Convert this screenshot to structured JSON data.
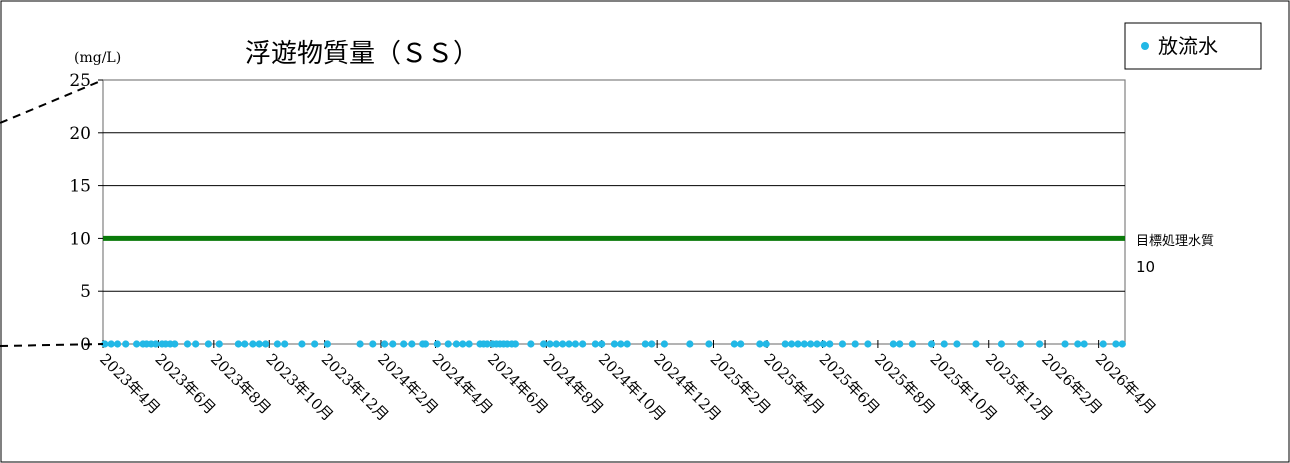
{
  "chart_data": {
    "type": "scatter",
    "title": "浮遊物質量（ＳＳ）",
    "unit_label": "(mg/L)",
    "ylim": [
      0,
      25
    ],
    "yticks": [
      0,
      5,
      10,
      15,
      20,
      25
    ],
    "x_range": [
      "2023-04-01",
      "2026-04-30"
    ],
    "xtick_dates": [
      "2023-04-01",
      "2023-06-01",
      "2023-08-01",
      "2023-10-01",
      "2023-12-01",
      "2024-02-01",
      "2024-04-01",
      "2024-06-01",
      "2024-08-01",
      "2024-10-01",
      "2024-12-01",
      "2025-02-01",
      "2025-04-01",
      "2025-06-01",
      "2025-08-01",
      "2025-10-01",
      "2025-12-01",
      "2026-02-01",
      "2026-04-01"
    ],
    "xtick_labels": [
      "2023年4月",
      "2023年6月",
      "2023年8月",
      "2023年10月",
      "2023年12月",
      "2024年2月",
      "2024年4月",
      "2024年6月",
      "2024年8月",
      "2024年10月",
      "2024年12月",
      "2025年2月",
      "2025年4月",
      "2025年6月",
      "2025年8月",
      "2025年10月",
      "2025年12月",
      "2026年2月",
      "2026年4月"
    ],
    "legend": {
      "position": "top-right",
      "marker_color": "#22b8e6"
    },
    "series": [
      {
        "name": "放流水",
        "color": "#22b8e6",
        "points": [
          {
            "x": "2023-04-03",
            "y": 0
          },
          {
            "x": "2023-04-10",
            "y": 0
          },
          {
            "x": "2023-04-17",
            "y": 0
          },
          {
            "x": "2023-04-26",
            "y": 0
          },
          {
            "x": "2023-05-08",
            "y": 0
          },
          {
            "x": "2023-05-15",
            "y": 0
          },
          {
            "x": "2023-05-19",
            "y": 0
          },
          {
            "x": "2023-05-24",
            "y": 0
          },
          {
            "x": "2023-05-29",
            "y": 0
          },
          {
            "x": "2023-06-05",
            "y": 0
          },
          {
            "x": "2023-06-09",
            "y": 0
          },
          {
            "x": "2023-06-14",
            "y": 0
          },
          {
            "x": "2023-06-19",
            "y": 0
          },
          {
            "x": "2023-07-03",
            "y": 0
          },
          {
            "x": "2023-07-12",
            "y": 0
          },
          {
            "x": "2023-07-26",
            "y": 0
          },
          {
            "x": "2023-08-07",
            "y": 0
          },
          {
            "x": "2023-08-28",
            "y": 0
          },
          {
            "x": "2023-09-04",
            "y": 0
          },
          {
            "x": "2023-09-13",
            "y": 0
          },
          {
            "x": "2023-09-20",
            "y": 0
          },
          {
            "x": "2023-09-27",
            "y": 0
          },
          {
            "x": "2023-10-10",
            "y": 0
          },
          {
            "x": "2023-10-18",
            "y": 0
          },
          {
            "x": "2023-11-06",
            "y": 0
          },
          {
            "x": "2023-11-20",
            "y": 0
          },
          {
            "x": "2023-12-04",
            "y": 0
          },
          {
            "x": "2024-01-09",
            "y": 0
          },
          {
            "x": "2024-01-23",
            "y": 0
          },
          {
            "x": "2024-02-05",
            "y": 0
          },
          {
            "x": "2024-02-14",
            "y": 0
          },
          {
            "x": "2024-02-26",
            "y": 0
          },
          {
            "x": "2024-03-06",
            "y": 0
          },
          {
            "x": "2024-03-18",
            "y": 0
          },
          {
            "x": "2024-03-21",
            "y": 0
          },
          {
            "x": "2024-04-03",
            "y": 0
          },
          {
            "x": "2024-04-15",
            "y": 0
          },
          {
            "x": "2024-04-24",
            "y": 0
          },
          {
            "x": "2024-05-01",
            "y": 0
          },
          {
            "x": "2024-05-08",
            "y": 0
          },
          {
            "x": "2024-05-20",
            "y": 0
          },
          {
            "x": "2024-05-24",
            "y": 0
          },
          {
            "x": "2024-05-28",
            "y": 0
          },
          {
            "x": "2024-06-03",
            "y": 0
          },
          {
            "x": "2024-06-07",
            "y": 0
          },
          {
            "x": "2024-06-11",
            "y": 0
          },
          {
            "x": "2024-06-15",
            "y": 0
          },
          {
            "x": "2024-06-19",
            "y": 0
          },
          {
            "x": "2024-06-24",
            "y": 0
          },
          {
            "x": "2024-06-28",
            "y": 0
          },
          {
            "x": "2024-07-15",
            "y": 0
          },
          {
            "x": "2024-07-29",
            "y": 0
          },
          {
            "x": "2024-08-05",
            "y": 0
          },
          {
            "x": "2024-08-12",
            "y": 0
          },
          {
            "x": "2024-08-19",
            "y": 0
          },
          {
            "x": "2024-08-26",
            "y": 0
          },
          {
            "x": "2024-09-02",
            "y": 0
          },
          {
            "x": "2024-09-10",
            "y": 0
          },
          {
            "x": "2024-09-24",
            "y": 0
          },
          {
            "x": "2024-10-01",
            "y": 0
          },
          {
            "x": "2024-10-15",
            "y": 0
          },
          {
            "x": "2024-10-22",
            "y": 0
          },
          {
            "x": "2024-10-29",
            "y": 0
          },
          {
            "x": "2024-11-18",
            "y": 0
          },
          {
            "x": "2024-11-25",
            "y": 0
          },
          {
            "x": "2024-12-09",
            "y": 0
          },
          {
            "x": "2025-01-06",
            "y": 0
          },
          {
            "x": "2025-01-27",
            "y": 0
          },
          {
            "x": "2025-02-24",
            "y": 0
          },
          {
            "x": "2025-03-03",
            "y": 0
          },
          {
            "x": "2025-03-24",
            "y": 0
          },
          {
            "x": "2025-03-31",
            "y": 0
          },
          {
            "x": "2025-04-21",
            "y": 0
          },
          {
            "x": "2025-04-28",
            "y": 0
          },
          {
            "x": "2025-05-05",
            "y": 0
          },
          {
            "x": "2025-05-12",
            "y": 0
          },
          {
            "x": "2025-05-19",
            "y": 0
          },
          {
            "x": "2025-05-26",
            "y": 0
          },
          {
            "x": "2025-06-02",
            "y": 0
          },
          {
            "x": "2025-06-09",
            "y": 0
          },
          {
            "x": "2025-06-23",
            "y": 0
          },
          {
            "x": "2025-07-07",
            "y": 0
          },
          {
            "x": "2025-07-21",
            "y": 0
          },
          {
            "x": "2025-08-18",
            "y": 0
          },
          {
            "x": "2025-08-25",
            "y": 0
          },
          {
            "x": "2025-09-08",
            "y": 0
          },
          {
            "x": "2025-09-29",
            "y": 0
          },
          {
            "x": "2025-10-13",
            "y": 0
          },
          {
            "x": "2025-10-27",
            "y": 0
          },
          {
            "x": "2025-11-17",
            "y": 0
          },
          {
            "x": "2025-12-15",
            "y": 0
          },
          {
            "x": "2026-01-05",
            "y": 0
          },
          {
            "x": "2026-01-26",
            "y": 0
          },
          {
            "x": "2026-02-23",
            "y": 0
          },
          {
            "x": "2026-03-09",
            "y": 0
          },
          {
            "x": "2026-03-16",
            "y": 0
          },
          {
            "x": "2026-04-06",
            "y": 0
          },
          {
            "x": "2026-04-20",
            "y": 0
          },
          {
            "x": "2026-04-27",
            "y": 0
          }
        ]
      }
    ],
    "reference_line": {
      "label": "目標処理水質",
      "value_label": "10",
      "value": 10,
      "color": "#0a7a0a"
    },
    "grid": true
  }
}
